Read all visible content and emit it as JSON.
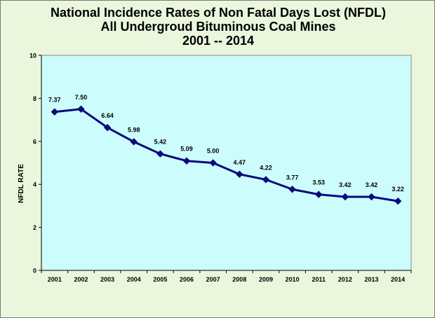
{
  "chart_data": {
    "type": "line",
    "title_lines": [
      "National Incidence Rates of Non Fatal Days Lost (NFDL)",
      "All Undergroud Bituminous Coal Mines",
      "2001 -- 2014"
    ],
    "xlabel": "",
    "ylabel": "NFDL RATE",
    "categories": [
      "2001",
      "2002",
      "2003",
      "2004",
      "2005",
      "2006",
      "2007",
      "2008",
      "2009",
      "2010",
      "2011",
      "2012",
      "2013",
      "2014"
    ],
    "values": [
      7.37,
      7.5,
      6.64,
      5.98,
      5.42,
      5.09,
      5.0,
      4.47,
      4.22,
      3.77,
      3.53,
      3.42,
      3.42,
      3.22
    ],
    "data_labels": [
      "7.37",
      "7.50",
      "6.64",
      "5.98",
      "5.42",
      "5.09",
      "5.00",
      "4.47",
      "4.22",
      "3.77",
      "3.53",
      "3.42",
      "3.42",
      "3.22"
    ],
    "ylim": [
      0,
      10
    ],
    "yticks": [
      "0",
      "2",
      "4",
      "6",
      "8",
      "10"
    ],
    "grid": false,
    "legend": "none",
    "colors": {
      "background": "#eaf7dc",
      "plot_area": "#ccfcfc",
      "line": "#0a0a7a",
      "marker": "#0a0a7a"
    }
  }
}
